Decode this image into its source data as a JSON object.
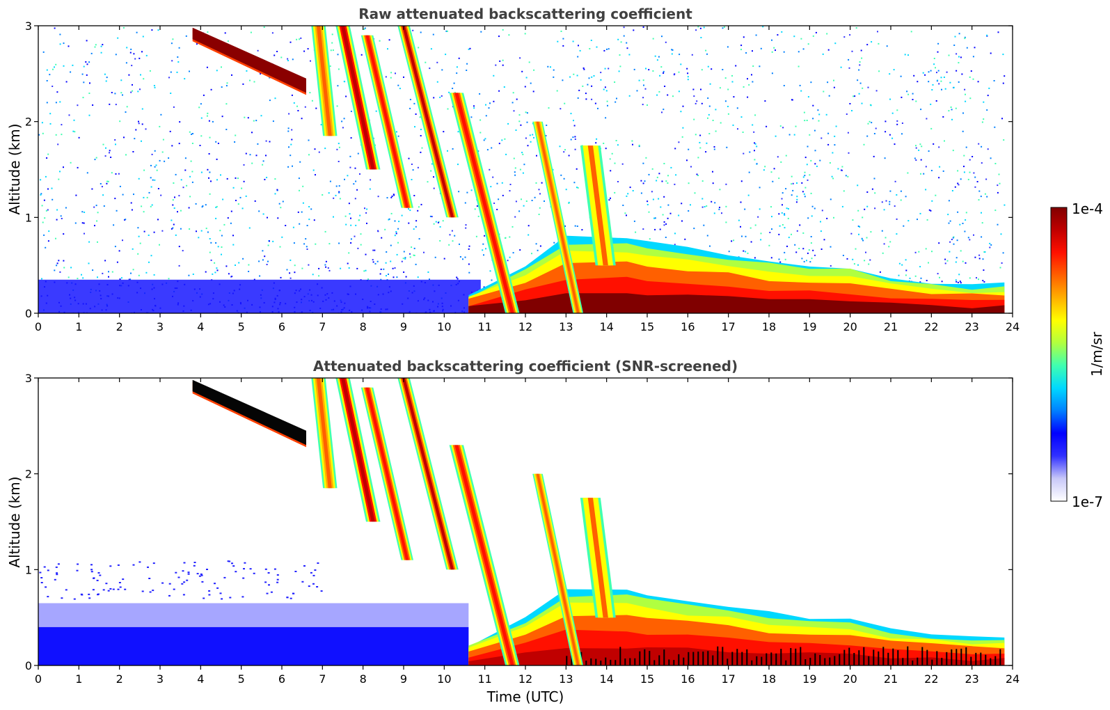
{
  "chart_data": [
    {
      "type": "heatmap",
      "title": "Raw attenuated backscattering coefficient",
      "xlabel": "",
      "ylabel": "Altitude (km)",
      "xlim": [
        0,
        24
      ],
      "ylim": [
        0,
        3
      ],
      "x_ticks": [
        "0",
        "1",
        "2",
        "3",
        "4",
        "5",
        "6",
        "7",
        "8",
        "9",
        "10",
        "11",
        "12",
        "13",
        "14",
        "15",
        "16",
        "17",
        "18",
        "19",
        "20",
        "21",
        "22",
        "23",
        "24"
      ],
      "y_ticks": [
        "0",
        "1",
        "2",
        "3"
      ],
      "noise_region": {
        "from_hour": 0,
        "to_hour": 24,
        "dense_up_to_km": 0.35
      },
      "cloud_layer": {
        "start_hour": 3.8,
        "end_hour": 6.6,
        "top_start_km": 2.98,
        "top_end_km": 2.35,
        "intensity": "saturated"
      },
      "fall_streaks": [
        {
          "x_top": 6.9,
          "top_km": 3.0,
          "bottom_km": 1.85,
          "slope_h_per_km": 0.25,
          "width_h": 0.35,
          "level": 0.7
        },
        {
          "x_top": 7.5,
          "top_km": 3.0,
          "bottom_km": 1.5,
          "slope_h_per_km": 0.5,
          "width_h": 0.35,
          "level": 0.85
        },
        {
          "x_top": 8.1,
          "top_km": 2.9,
          "bottom_km": 1.1,
          "slope_h_per_km": 0.55,
          "width_h": 0.3,
          "level": 0.75
        },
        {
          "x_top": 9.0,
          "top_km": 3.0,
          "bottom_km": 1.0,
          "slope_h_per_km": 0.6,
          "width_h": 0.3,
          "level": 0.8
        },
        {
          "x_top": 10.3,
          "top_km": 2.3,
          "bottom_km": 0.0,
          "slope_h_per_km": 0.6,
          "width_h": 0.35,
          "level": 0.75
        },
        {
          "x_top": 12.3,
          "top_km": 2.0,
          "bottom_km": 0.0,
          "slope_h_per_km": 0.5,
          "width_h": 0.25,
          "level": 0.7
        },
        {
          "x_top": 13.6,
          "top_km": 1.75,
          "bottom_km": 0.5,
          "slope_h_per_km": 0.3,
          "width_h": 0.5,
          "level": 0.65
        }
      ],
      "boundary_layer": [
        {
          "hour": 10.6,
          "top_km": 0.2
        },
        {
          "hour": 12.0,
          "top_km": 0.5
        },
        {
          "hour": 13.0,
          "top_km": 0.8
        },
        {
          "hour": 14.5,
          "top_km": 0.8
        },
        {
          "hour": 15.0,
          "top_km": 0.75
        },
        {
          "hour": 16.0,
          "top_km": 0.68
        },
        {
          "hour": 17.0,
          "top_km": 0.62
        },
        {
          "hour": 18.0,
          "top_km": 0.55
        },
        {
          "hour": 19.0,
          "top_km": 0.5
        },
        {
          "hour": 20.0,
          "top_km": 0.48
        },
        {
          "hour": 21.0,
          "top_km": 0.38
        },
        {
          "hour": 22.0,
          "top_km": 0.32
        },
        {
          "hour": 23.0,
          "top_km": 0.28
        },
        {
          "hour": 23.8,
          "top_km": 0.3
        }
      ]
    },
    {
      "type": "heatmap",
      "title": "Attenuated backscattering coefficient (SNR-screened)",
      "xlabel": "Time (UTC)",
      "ylabel": "Altitude (km)",
      "xlim": [
        0,
        24
      ],
      "ylim": [
        0,
        3
      ],
      "x_ticks": [
        "0",
        "1",
        "2",
        "3",
        "4",
        "5",
        "6",
        "7",
        "8",
        "9",
        "10",
        "11",
        "12",
        "13",
        "14",
        "15",
        "16",
        "17",
        "18",
        "19",
        "20",
        "21",
        "22",
        "23",
        "24"
      ],
      "y_ticks": [
        "0",
        "1",
        "2",
        "3"
      ],
      "noise_region": {
        "from_hour": 0,
        "to_hour": 10.6,
        "up_to_km": 0.65,
        "screened_above": true
      },
      "cloud_layer": {
        "start_hour": 3.8,
        "end_hour": 6.6,
        "top_start_km": 2.98,
        "top_end_km": 2.35,
        "intensity": "black"
      },
      "same_features_as": "Raw attenuated backscattering coefficient"
    }
  ],
  "colorbar": {
    "label": "1/m/sr",
    "max_label": "1e-4",
    "min_label": "1e-7",
    "scale": "log",
    "range": [
      1e-07,
      0.0001
    ],
    "colors": [
      "#ffffff",
      "#c8c8f8",
      "#3030ff",
      "#0000ff",
      "#0080ff",
      "#00d8ff",
      "#40ffb0",
      "#b0ff40",
      "#ffff00",
      "#ffb000",
      "#ff6000",
      "#ff1000",
      "#c00000",
      "#800000"
    ]
  }
}
